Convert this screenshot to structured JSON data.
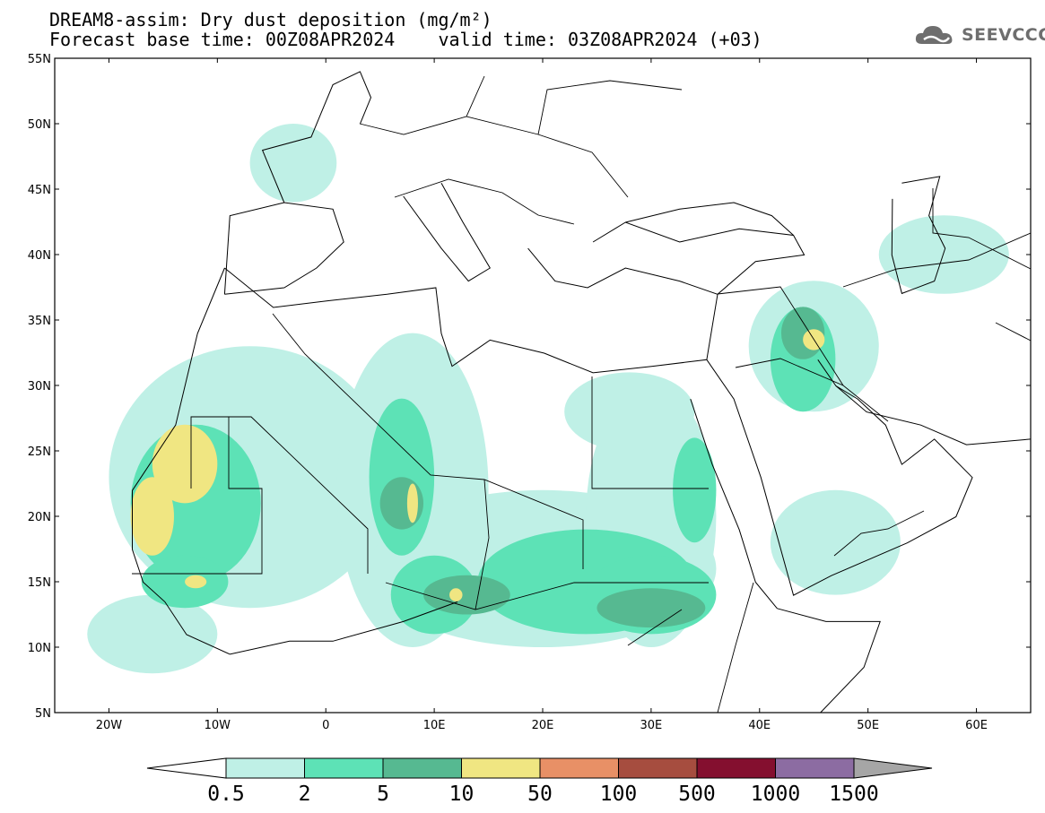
{
  "header": {
    "title_line1": "DREAM8-assim: Dry dust deposition (mg/m²)",
    "title_line2": "Forecast base time: 00Z08APR2024    valid time: 03Z08APR2024 (+03)"
  },
  "logo": {
    "text": "SEEVCCC",
    "icon": "cloud-logo-icon",
    "color": "#6e6e6e"
  },
  "map": {
    "extent": {
      "lon": [
        -25,
        65
      ],
      "lat": [
        5,
        55
      ]
    },
    "lat_ticks": [
      {
        "value": 55,
        "label": "55N"
      },
      {
        "value": 50,
        "label": "50N"
      },
      {
        "value": 45,
        "label": "45N"
      },
      {
        "value": 40,
        "label": "40N"
      },
      {
        "value": 35,
        "label": "35N"
      },
      {
        "value": 30,
        "label": "30N"
      },
      {
        "value": 25,
        "label": "25N"
      },
      {
        "value": 20,
        "label": "20N"
      },
      {
        "value": 15,
        "label": "15N"
      },
      {
        "value": 10,
        "label": "10N"
      },
      {
        "value": 5,
        "label": "5N"
      }
    ],
    "lon_ticks": [
      {
        "value": -20,
        "label": "20W"
      },
      {
        "value": -10,
        "label": "10W"
      },
      {
        "value": 0,
        "label": "0"
      },
      {
        "value": 10,
        "label": "10E"
      },
      {
        "value": 20,
        "label": "20E"
      },
      {
        "value": 30,
        "label": "30E"
      },
      {
        "value": 40,
        "label": "40E"
      },
      {
        "value": 50,
        "label": "50E"
      },
      {
        "value": 60,
        "label": "60E"
      }
    ]
  },
  "colorbar": {
    "under_color": "#ffffff",
    "over_color": "#a6a6a6",
    "colors": [
      "#bff0e6",
      "#5de2b6",
      "#56b991",
      "#f0e682",
      "#e89066",
      "#a64d3f",
      "#840f2f",
      "#8c6ca2"
    ],
    "labels": [
      "0.5",
      "2",
      "5",
      "10",
      "50",
      "100",
      "500",
      "1000",
      "1500"
    ]
  },
  "deposition_areas": [
    {
      "level": 0,
      "center": [
        -7,
        23
      ],
      "radius": [
        13,
        10
      ]
    },
    {
      "level": 0,
      "center": [
        8,
        22
      ],
      "radius": [
        7,
        12
      ]
    },
    {
      "level": 0,
      "center": [
        20,
        16
      ],
      "radius": [
        16,
        6
      ]
    },
    {
      "level": 0,
      "center": [
        30,
        20
      ],
      "radius": [
        6,
        10
      ]
    },
    {
      "level": 0,
      "center": [
        28,
        28
      ],
      "radius": [
        6,
        3
      ]
    },
    {
      "level": 0,
      "center": [
        45,
        33
      ],
      "radius": [
        6,
        5
      ]
    },
    {
      "level": 0,
      "center": [
        47,
        18
      ],
      "radius": [
        6,
        4
      ]
    },
    {
      "level": 0,
      "center": [
        -3,
        47
      ],
      "radius": [
        4,
        3
      ]
    },
    {
      "level": 0,
      "center": [
        57,
        40
      ],
      "radius": [
        6,
        3
      ]
    },
    {
      "level": 0,
      "center": [
        -16,
        11
      ],
      "radius": [
        6,
        3
      ]
    },
    {
      "level": 1,
      "center": [
        -12,
        21
      ],
      "radius": [
        6,
        6
      ]
    },
    {
      "level": 1,
      "center": [
        7,
        23
      ],
      "radius": [
        3,
        6
      ]
    },
    {
      "level": 1,
      "center": [
        24,
        15
      ],
      "radius": [
        10,
        4
      ]
    },
    {
      "level": 1,
      "center": [
        30,
        14
      ],
      "radius": [
        6,
        3
      ]
    },
    {
      "level": 1,
      "center": [
        44,
        32
      ],
      "radius": [
        3,
        4
      ]
    },
    {
      "level": 1,
      "center": [
        10,
        14
      ],
      "radius": [
        4,
        3
      ]
    },
    {
      "level": 1,
      "center": [
        -13,
        15
      ],
      "radius": [
        4,
        2
      ]
    },
    {
      "level": 1,
      "center": [
        34,
        22
      ],
      "radius": [
        2,
        4
      ]
    },
    {
      "level": 2,
      "center": [
        7,
        21
      ],
      "radius": [
        2,
        2
      ]
    },
    {
      "level": 2,
      "center": [
        30,
        13
      ],
      "radius": [
        5,
        1.5
      ]
    },
    {
      "level": 2,
      "center": [
        13,
        14
      ],
      "radius": [
        4,
        1.5
      ]
    },
    {
      "level": 2,
      "center": [
        44,
        34
      ],
      "radius": [
        2,
        2
      ]
    },
    {
      "level": 3,
      "center": [
        -13,
        24
      ],
      "radius": [
        3,
        3
      ]
    },
    {
      "level": 3,
      "center": [
        -16,
        20
      ],
      "radius": [
        2,
        3
      ]
    },
    {
      "level": 3,
      "center": [
        45,
        33.5
      ],
      "radius": [
        1,
        0.8
      ]
    },
    {
      "level": 3,
      "center": [
        8,
        21
      ],
      "radius": [
        0.5,
        1.5
      ]
    },
    {
      "level": 3,
      "center": [
        -12,
        15
      ],
      "radius": [
        1,
        0.5
      ]
    },
    {
      "level": 3,
      "center": [
        12,
        14
      ],
      "radius": [
        0.6,
        0.5
      ]
    }
  ]
}
